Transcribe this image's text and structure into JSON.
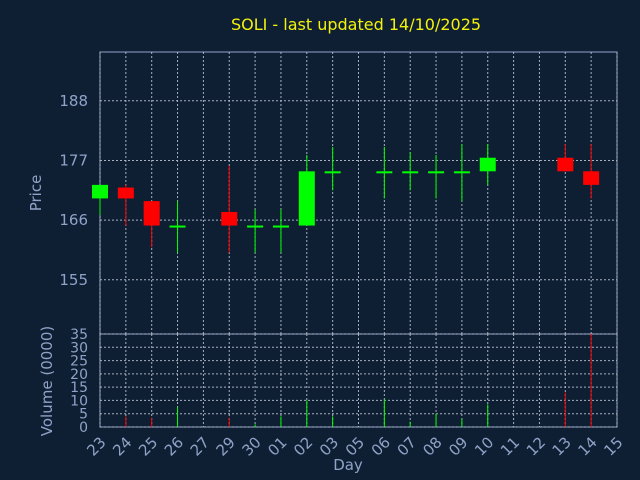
{
  "chart_data": [
    {
      "type": "candlestick",
      "title": "SOLI - last updated 14/10/2025",
      "ylabel": "Price",
      "y_ticks": [
        "155",
        "166",
        "177",
        "188"
      ],
      "ylim": [
        145,
        197
      ],
      "categories": [
        "23",
        "24",
        "25",
        "26",
        "27",
        "29",
        "30",
        "01",
        "02",
        "03",
        "05",
        "06",
        "07",
        "08",
        "09",
        "10",
        "11",
        "12",
        "13",
        "14",
        "15"
      ],
      "candles": [
        {
          "day": "23",
          "open": 170,
          "high": 172.5,
          "low": 167,
          "close": 172.5,
          "color": "#00ff00"
        },
        {
          "day": "24",
          "open": 172,
          "high": 172.5,
          "low": 165,
          "close": 170,
          "color": "#ff0000"
        },
        {
          "day": "25",
          "open": 169.5,
          "high": 169.5,
          "low": 161,
          "close": 165,
          "color": "#ff0000"
        },
        {
          "day": "26",
          "open": 165,
          "high": 169.5,
          "low": 160,
          "close": 165,
          "color": "#00ff00"
        },
        {
          "day": "29",
          "open": 167.5,
          "high": 176,
          "low": 160,
          "close": 165,
          "color": "#ff0000"
        },
        {
          "day": "30",
          "open": 165,
          "high": 168,
          "low": 160,
          "close": 165,
          "color": "#00ff00"
        },
        {
          "day": "01",
          "open": 165,
          "high": 168,
          "low": 160,
          "close": 165,
          "color": "#00ff00"
        },
        {
          "day": "02",
          "open": 165,
          "high": 178,
          "low": 165,
          "close": 175,
          "color": "#00ff00"
        },
        {
          "day": "03",
          "open": 175,
          "high": 179.5,
          "low": 171.5,
          "close": 175,
          "color": "#00ff00"
        },
        {
          "day": "06",
          "open": 175,
          "high": 179.5,
          "low": 170,
          "close": 175,
          "color": "#00ff00"
        },
        {
          "day": "07",
          "open": 175,
          "high": 178.5,
          "low": 171.5,
          "close": 175,
          "color": "#00ff00"
        },
        {
          "day": "08",
          "open": 175,
          "high": 178,
          "low": 170,
          "close": 175,
          "color": "#00ff00"
        },
        {
          "day": "09",
          "open": 175,
          "high": 180,
          "low": 169.5,
          "close": 175,
          "color": "#00ff00"
        },
        {
          "day": "10",
          "open": 175,
          "high": 180,
          "low": 172.5,
          "close": 177.5,
          "color": "#00ff00"
        },
        {
          "day": "13",
          "open": 177.5,
          "high": 180,
          "low": 175,
          "close": 175,
          "color": "#ff0000"
        },
        {
          "day": "14",
          "open": 175,
          "high": 180,
          "low": 170,
          "close": 172.5,
          "color": "#ff0000"
        }
      ]
    },
    {
      "type": "bar",
      "ylabel": "Volume (0000)",
      "xlabel": "Day",
      "y_ticks": [
        "0",
        "5",
        "10",
        "15",
        "20",
        "25",
        "30",
        "35"
      ],
      "ylim": [
        0,
        35
      ],
      "categories": [
        "23",
        "24",
        "25",
        "26",
        "27",
        "29",
        "30",
        "01",
        "02",
        "03",
        "05",
        "06",
        "07",
        "08",
        "09",
        "10",
        "11",
        "12",
        "13",
        "14",
        "15"
      ],
      "bars": [
        {
          "day": "23",
          "value": 0,
          "color": "#00ff00"
        },
        {
          "day": "24",
          "value": 4,
          "color": "#ff0000"
        },
        {
          "day": "25",
          "value": 3.5,
          "color": "#ff0000"
        },
        {
          "day": "26",
          "value": 7.5,
          "color": "#00ff00"
        },
        {
          "day": "29",
          "value": 3.5,
          "color": "#ff0000"
        },
        {
          "day": "30",
          "value": 1,
          "color": "#00ff00"
        },
        {
          "day": "01",
          "value": 4,
          "color": "#00ff00"
        },
        {
          "day": "02",
          "value": 10,
          "color": "#00ff00"
        },
        {
          "day": "03",
          "value": 4,
          "color": "#00ff00"
        },
        {
          "day": "06",
          "value": 10.5,
          "color": "#00ff00"
        },
        {
          "day": "07",
          "value": 2,
          "color": "#00ff00"
        },
        {
          "day": "08",
          "value": 5,
          "color": "#00ff00"
        },
        {
          "day": "09",
          "value": 3,
          "color": "#00ff00"
        },
        {
          "day": "10",
          "value": 8.5,
          "color": "#00ff00"
        },
        {
          "day": "13",
          "value": 13,
          "color": "#ff0000"
        },
        {
          "day": "14",
          "value": 35,
          "color": "#ff0000"
        }
      ]
    }
  ]
}
